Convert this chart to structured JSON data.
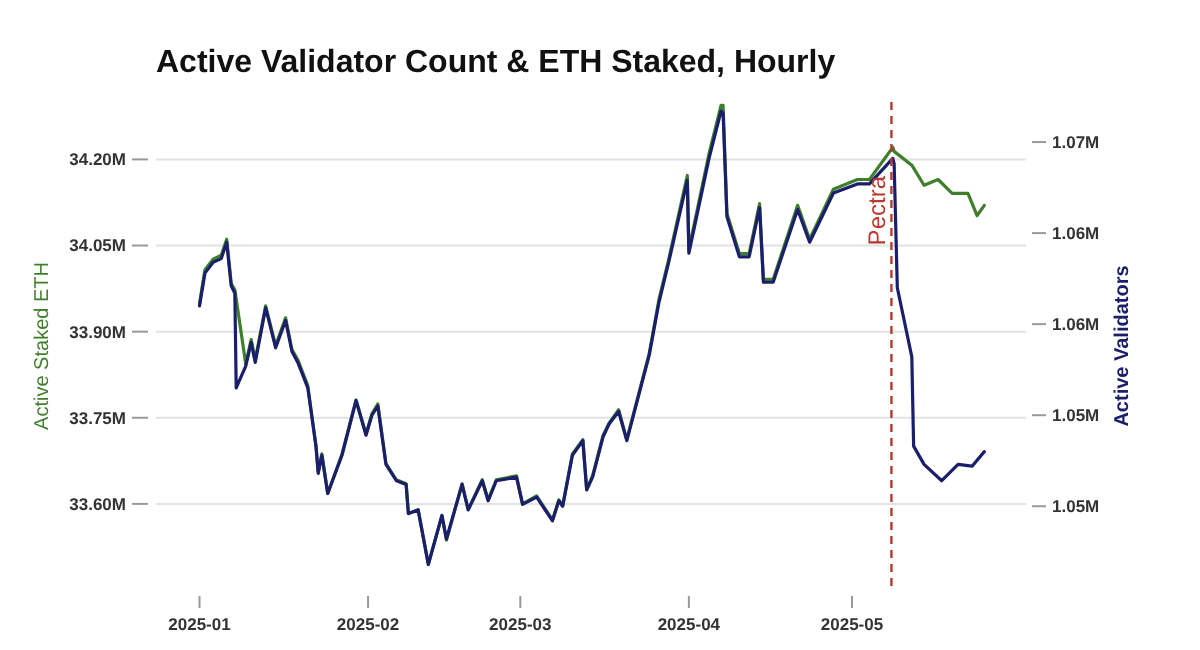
{
  "chart_data": {
    "type": "line",
    "title": "Active Validator Count & ETH Staked, Hourly",
    "ylabel": "Active Staked ETH",
    "y2label": "Active Validators",
    "grid": "y",
    "xlim": [
      "2024-12-24",
      "2025-06-02"
    ],
    "xticks": [
      "2025-01",
      "2025-02",
      "2025-03",
      "2025-04",
      "2025-05"
    ],
    "ylim": [
      33.45,
      34.3
    ],
    "yticks": [
      {
        "value": 33.6,
        "label": "33.60M"
      },
      {
        "value": 33.75,
        "label": "33.75M"
      },
      {
        "value": 33.9,
        "label": "33.90M"
      },
      {
        "value": 34.05,
        "label": "34.05M"
      },
      {
        "value": 34.2,
        "label": "34.20M"
      }
    ],
    "y2lim": [
      1.0454,
      1.0722
    ],
    "y2ticks": [
      {
        "value": 1.05,
        "label": "1.05M"
      },
      {
        "value": 1.055,
        "label": "1.05M"
      },
      {
        "value": 1.06,
        "label": "1.06M"
      },
      {
        "value": 1.065,
        "label": "1.06M"
      },
      {
        "value": 1.07,
        "label": "1.07M"
      }
    ],
    "ref_lines": [
      {
        "axis": "x",
        "value": "2025-05-08T06:00",
        "label": "Pectra",
        "color": "#b83a2e",
        "line_style": "dashed"
      }
    ],
    "series": [
      {
        "color": "#3f7f2c",
        "x": [
          "2025-01-01",
          "2025-01-02",
          "2025-01-03T12:00",
          "2025-01-05",
          "2025-01-06",
          "2025-01-06T20:00",
          "2025-01-07T12:00",
          "2025-01-09T12:00",
          "2025-01-10T12:00",
          "2025-01-11T06:00",
          "2025-01-13T04:00",
          "2025-01-14T06:00",
          "2025-01-15",
          "2025-01-16T20:00",
          "2025-01-18",
          "2025-01-19T02:00",
          "2025-01-20T22:00",
          "2025-01-22T10:00",
          "2025-01-22T20:00",
          "2025-01-23T12:00",
          "2025-01-24T14:00",
          "2025-01-27T05:00",
          "2025-01-29T19:00",
          "2025-01-31T15:00",
          "2025-02-01T17:00",
          "2025-02-02T19:00",
          "2025-02-04T07:00",
          "2025-02-06T05:00",
          "2025-02-08",
          "2025-02-08T10:00",
          "2025-02-10T05:00",
          "2025-02-12T02:00",
          "2025-02-14T14:00",
          "2025-02-15T10:00",
          "2025-02-18T07:00",
          "2025-02-19T10:00",
          "2025-02-22",
          "2025-02-23T02:00",
          "2025-02-24T14:00",
          "2025-02-28T07:00",
          "2025-03-01T10:00",
          "2025-03-04",
          "2025-03-06T22:00",
          "2025-03-08T02:00",
          "2025-03-08T19:00",
          "2025-03-10T14:00",
          "2025-03-12T12:00",
          "2025-03-13T05:00",
          "2025-03-14T07:00",
          "2025-03-16T05:00",
          "2025-03-17T07:00",
          "2025-03-19T02:00",
          "2025-03-20T14:00",
          "2025-03-24T17:00",
          "2025-03-26T12:00",
          "2025-03-28T07:00",
          "2025-03-31T17:00",
          "2025-04-01",
          "2025-04-04T17:00",
          "2025-04-06T22:00",
          "2025-04-07T07:00",
          "2025-04-08",
          "2025-04-10T07:00",
          "2025-04-12T02:00",
          "2025-04-14",
          "2025-04-14T17:00",
          "2025-04-16T12:00",
          "2025-04-21",
          "2025-04-23T05:00",
          "2025-04-27T14:00",
          "2025-05-02",
          "2025-05-04T05:00",
          "2025-05-08T12:00",
          "2025-05-08T18:00",
          "2025-05-12",
          "2025-05-14T06:00",
          "2025-05-16T20:00",
          "2025-05-19T10:00",
          "2025-05-22T08:00",
          "2025-05-24",
          "2025-05-25T08:00"
        ],
        "values": [
          33.949,
          34.008,
          34.026,
          34.033,
          34.061,
          33.984,
          33.973,
          33.844,
          33.886,
          33.851,
          33.945,
          33.904,
          33.876,
          33.924,
          33.869,
          33.851,
          33.806,
          33.701,
          33.656,
          33.687,
          33.618,
          33.687,
          33.781,
          33.722,
          33.757,
          33.774,
          33.67,
          33.642,
          33.635,
          33.583,
          33.59,
          33.495,
          33.579,
          33.537,
          33.635,
          33.59,
          33.642,
          33.607,
          33.642,
          33.649,
          33.6,
          33.614,
          33.572,
          33.607,
          33.597,
          33.687,
          33.712,
          33.625,
          33.649,
          33.719,
          33.74,
          33.764,
          33.712,
          33.862,
          33.956,
          34.026,
          34.172,
          34.043,
          34.21,
          34.294,
          34.294,
          34.106,
          34.036,
          34.036,
          34.123,
          33.991,
          33.991,
          34.12,
          34.061,
          34.148,
          34.165,
          34.165,
          34.221,
          34.214,
          34.19,
          34.155,
          34.165,
          34.141,
          34.141,
          34.102,
          34.12
        ]
      },
      {
        "color": "#1b1f6b",
        "axis": "y2",
        "x": [
          "2025-01-01",
          "2025-01-02",
          "2025-01-03T12:00",
          "2025-01-05",
          "2025-01-06",
          "2025-01-06T20:00",
          "2025-01-07T12:00",
          "2025-01-07T18:00",
          "2025-01-09T12:00",
          "2025-01-10T12:00",
          "2025-01-11T06:00",
          "2025-01-13T04:00",
          "2025-01-14T06:00",
          "2025-01-15",
          "2025-01-16T20:00",
          "2025-01-18",
          "2025-01-19T02:00",
          "2025-01-20T22:00",
          "2025-01-22T10:00",
          "2025-01-22T20:00",
          "2025-01-23T12:00",
          "2025-01-24T14:00",
          "2025-01-27T05:00",
          "2025-01-29T19:00",
          "2025-01-31T15:00",
          "2025-02-01T17:00",
          "2025-02-02T19:00",
          "2025-02-04T07:00",
          "2025-02-06T05:00",
          "2025-02-08",
          "2025-02-08T10:00",
          "2025-02-10T05:00",
          "2025-02-12T02:00",
          "2025-02-14T14:00",
          "2025-02-15T10:00",
          "2025-02-18T07:00",
          "2025-02-19T10:00",
          "2025-02-22",
          "2025-02-23T02:00",
          "2025-02-24T14:00",
          "2025-02-28T07:00",
          "2025-03-01T10:00",
          "2025-03-04",
          "2025-03-06T22:00",
          "2025-03-08T02:00",
          "2025-03-08T19:00",
          "2025-03-10T14:00",
          "2025-03-12T12:00",
          "2025-03-13T05:00",
          "2025-03-14T07:00",
          "2025-03-16T05:00",
          "2025-03-17T07:00",
          "2025-03-19T02:00",
          "2025-03-20T14:00",
          "2025-03-24T17:00",
          "2025-03-26T12:00",
          "2025-03-28T07:00",
          "2025-03-31T17:00",
          "2025-04-01",
          "2025-04-04T17:00",
          "2025-04-06T22:00",
          "2025-04-07T07:00",
          "2025-04-08",
          "2025-04-10T07:00",
          "2025-04-12T02:00",
          "2025-04-14",
          "2025-04-14T17:00",
          "2025-04-16T12:00",
          "2025-04-21",
          "2025-04-23T05:00",
          "2025-04-27T14:00",
          "2025-05-02",
          "2025-05-04T05:00",
          "2025-05-08T12:00",
          "2025-05-08T18:00",
          "2025-05-09T08:00",
          "2025-05-12",
          "2025-05-12T08:00",
          "2025-05-14T06:00",
          "2025-05-17T12:00",
          "2025-05-20T12:00",
          "2025-05-23T02:00",
          "2025-05-25T08:00"
        ],
        "values": [
          1.061,
          1.0628,
          1.0634,
          1.0636,
          1.0645,
          1.0621,
          1.0617,
          1.0565,
          1.0577,
          1.059,
          1.0579,
          1.0609,
          1.0596,
          1.0587,
          1.0602,
          1.0585,
          1.0579,
          1.0565,
          1.0533,
          1.0518,
          1.0528,
          1.0507,
          1.0528,
          1.0558,
          1.0539,
          1.055,
          1.0555,
          1.0523,
          1.0514,
          1.0512,
          1.0496,
          1.0498,
          1.0468,
          1.0495,
          1.0482,
          1.0512,
          1.0498,
          1.0514,
          1.0503,
          1.0514,
          1.0516,
          1.0501,
          1.0505,
          1.0492,
          1.0503,
          1.05,
          1.0528,
          1.0536,
          1.0509,
          1.0516,
          1.0538,
          1.0545,
          1.0552,
          1.0536,
          1.0583,
          1.0612,
          1.0634,
          1.0679,
          1.0639,
          1.0691,
          1.0717,
          1.0716,
          1.0659,
          1.0637,
          1.0637,
          1.0664,
          1.0623,
          1.0623,
          1.0663,
          1.0645,
          1.0672,
          1.0677,
          1.0677,
          1.0691,
          1.0688,
          1.062,
          1.0582,
          1.0533,
          1.0523,
          1.0514,
          1.0523,
          1.0522,
          1.053
        ]
      }
    ]
  }
}
